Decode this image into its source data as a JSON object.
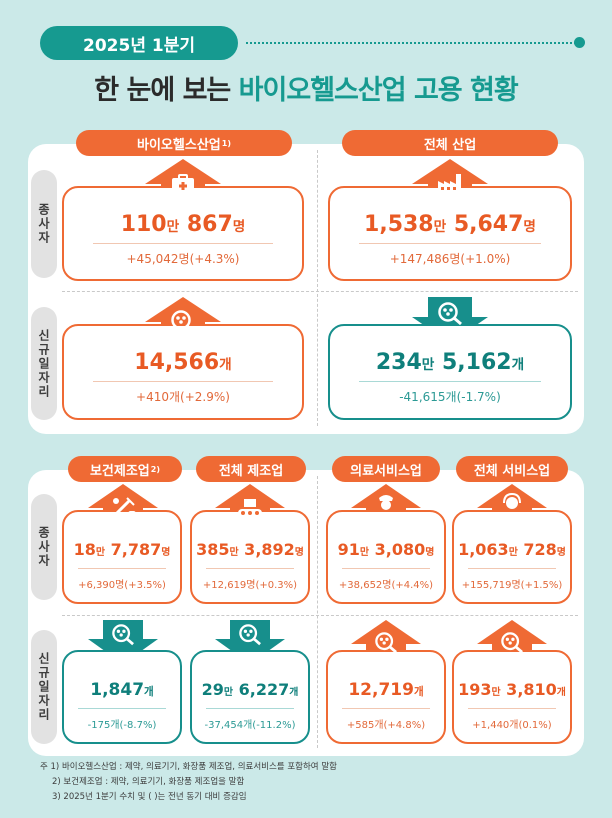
{
  "header": {
    "period": "2025년 1분기",
    "title_prefix": "한 눈에 보는 ",
    "title_highlight": "바이오헬스산업 고용 현황"
  },
  "row_labels": {
    "employees": "종사자",
    "new_jobs": "신규일자리"
  },
  "top": {
    "bio": {
      "label": "바이오헬스산업",
      "label_sup": "1)",
      "employees": {
        "value_a": "110",
        "unit_a": "만",
        "value_b": " 867",
        "unit_b": "명",
        "change": "+45,042명(+4.3%)",
        "trend": "up"
      },
      "new_jobs": {
        "value_a": "14,566",
        "unit_a": "개",
        "change": "+410개(+2.9%)",
        "trend": "up"
      }
    },
    "all": {
      "label": "전체 산업",
      "employees": {
        "value_a": "1,538",
        "unit_a": "만",
        "value_b": " 5,647",
        "unit_b": "명",
        "change": "+147,486명(+1.0%)",
        "trend": "up"
      },
      "new_jobs": {
        "value_a": "234",
        "unit_a": "만",
        "value_b": " 5,162",
        "unit_b": "개",
        "change": "-41,615개(-1.7%)",
        "trend": "down"
      }
    }
  },
  "bottom": {
    "health_mfg": {
      "label": "보건제조업",
      "label_sup": "2)",
      "employees": {
        "value_a": "18",
        "unit_a": "만",
        "value_b": " 7,787",
        "unit_b": "명",
        "change": "+6,390명(+3.5%)",
        "trend": "up"
      },
      "new_jobs": {
        "value_a": "1,847",
        "unit_a": "개",
        "change": "-175개(-8.7%)",
        "trend": "down"
      }
    },
    "all_mfg": {
      "label": "전체 제조업",
      "employees": {
        "value_a": "385",
        "unit_a": "만",
        "value_b": " 3,892",
        "unit_b": "명",
        "change": "+12,619명(+0.3%)",
        "trend": "up"
      },
      "new_jobs": {
        "value_a": "29",
        "unit_a": "만",
        "value_b": " 6,227",
        "unit_b": "개",
        "change": "-37,454개(-11.2%)",
        "trend": "down"
      }
    },
    "medical_svc": {
      "label": "의료서비스업",
      "employees": {
        "value_a": "91",
        "unit_a": "만",
        "value_b": " 3,080",
        "unit_b": "명",
        "change": "+38,652명(+4.4%)",
        "trend": "up"
      },
      "new_jobs": {
        "value_a": "12,719",
        "unit_a": "개",
        "change": "+585개(+4.8%)",
        "trend": "up"
      }
    },
    "all_svc": {
      "label": "전체 서비스업",
      "employees": {
        "value_a": "1,063",
        "unit_a": "만",
        "value_b": " 728",
        "unit_b": "명",
        "change": "+155,719명(+1.5%)",
        "trend": "up"
      },
      "new_jobs": {
        "value_a": "193",
        "unit_a": "만",
        "value_b": " 3,810",
        "unit_b": "개",
        "change": "+1,440개(0.1%)",
        "trend": "up"
      }
    }
  },
  "notes": [
    "주 1) 바이오헬스산업 : 제약, 의료기기, 화장품 제조업, 의료서비스를 포함하여 말함",
    "2) 보건제조업 : 제약, 의료기기, 화장품 제조업을 말함",
    "3) 2025년 1분기 수치 및 ( )는 전년 동기 대비 증감임"
  ],
  "colors": {
    "orange": "#ef6a34",
    "teal": "#178f8c",
    "background": "#cbe9e8"
  },
  "icons": {
    "bio_employees": "medical-kit-icon",
    "all_employees": "factory-icon",
    "new_jobs": "people-search-icon",
    "health_mfg": "pharma-equipment-icon",
    "all_mfg": "conveyor-belt-icon",
    "medical_svc": "nurse-icon",
    "all_svc": "service-worker-icon"
  }
}
